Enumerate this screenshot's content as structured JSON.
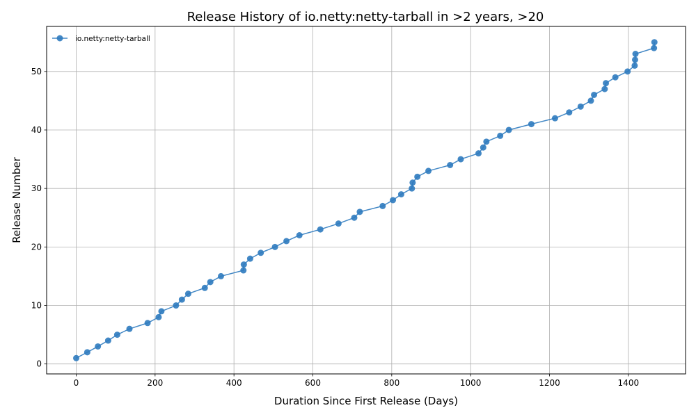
{
  "chart_data": {
    "type": "line",
    "title": "Release History of io.netty:netty-tarball in >2 years, >20",
    "xlabel": "Duration Since First Release (Days)",
    "ylabel": "Release Number",
    "xlim": [
      -75,
      1545
    ],
    "ylim": [
      -1.7,
      57.7
    ],
    "xticks": [
      0,
      200,
      400,
      600,
      800,
      1000,
      1200,
      1400
    ],
    "yticks": [
      0,
      10,
      20,
      30,
      40,
      50
    ],
    "grid": true,
    "legend_position": "top-left",
    "color": "#2f7bbf",
    "series": [
      {
        "name": "io.netty:netty-tarball",
        "x": [
          0,
          28,
          55,
          81,
          104,
          135,
          181,
          209,
          216,
          253,
          268,
          284,
          326,
          340,
          367,
          424,
          425,
          441,
          468,
          504,
          533,
          566,
          619,
          665,
          705,
          719,
          777,
          803,
          824,
          851,
          853,
          865,
          893,
          948,
          975,
          1020,
          1032,
          1040,
          1075,
          1097,
          1154,
          1214,
          1250,
          1279,
          1305,
          1313,
          1340,
          1343,
          1367,
          1398,
          1416,
          1417,
          1418,
          1465,
          1466
        ],
        "y": [
          1,
          2,
          3,
          4,
          5,
          6,
          7,
          8,
          9,
          10,
          11,
          12,
          13,
          14,
          15,
          16,
          17,
          18,
          19,
          20,
          21,
          22,
          23,
          24,
          25,
          26,
          27,
          28,
          29,
          30,
          31,
          32,
          33,
          34,
          35,
          36,
          37,
          38,
          39,
          40,
          41,
          42,
          43,
          44,
          45,
          46,
          47,
          48,
          49,
          50,
          51,
          52,
          53,
          54,
          55
        ]
      }
    ]
  }
}
